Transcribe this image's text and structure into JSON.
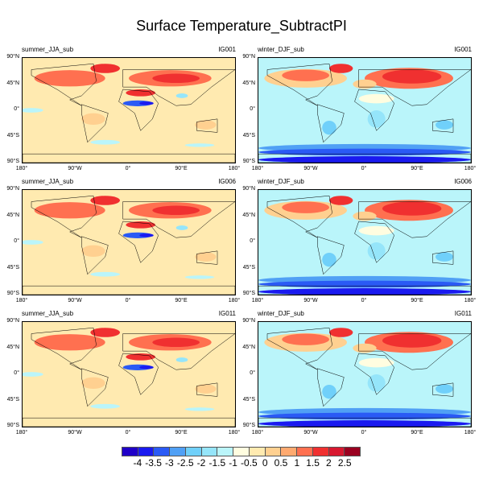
{
  "title": "Surface Temperature_SubtractPI",
  "panels": [
    {
      "left": "summer_JJA_sub",
      "right": "IG001",
      "season": "summer"
    },
    {
      "left": "winter_DJF_sub",
      "right": "IG001",
      "season": "winter"
    },
    {
      "left": "summer_JJA_sub",
      "right": "IG006",
      "season": "summer"
    },
    {
      "left": "winter_DJF_sub",
      "right": "IG006",
      "season": "winter"
    },
    {
      "left": "summer_JJA_sub",
      "right": "IG011",
      "season": "summer"
    },
    {
      "left": "winter_DJF_sub",
      "right": "IG011",
      "season": "winter"
    }
  ],
  "lat_ticks": [
    "90°N",
    "45°N",
    "0°",
    "45°S",
    "90°S"
  ],
  "lon_ticks": [
    "180°",
    "90°W",
    "0°",
    "90°E",
    "180°"
  ],
  "colorbar": {
    "labels": [
      "-4",
      "-3.5",
      "-3",
      "-2.5",
      "-2",
      "-1.5",
      "-1",
      "-0.5",
      "0",
      "0.5",
      "1",
      "1.5",
      "2",
      "2.5"
    ],
    "colors": [
      "#2000c8",
      "#1a1af0",
      "#2a5af5",
      "#50a0f5",
      "#70d0fa",
      "#95e5fa",
      "#baf5fa",
      "#fffde0",
      "#ffeab0",
      "#ffd090",
      "#ffaa70",
      "#ff7050",
      "#f03030",
      "#d81830",
      "#9a0020"
    ]
  }
}
